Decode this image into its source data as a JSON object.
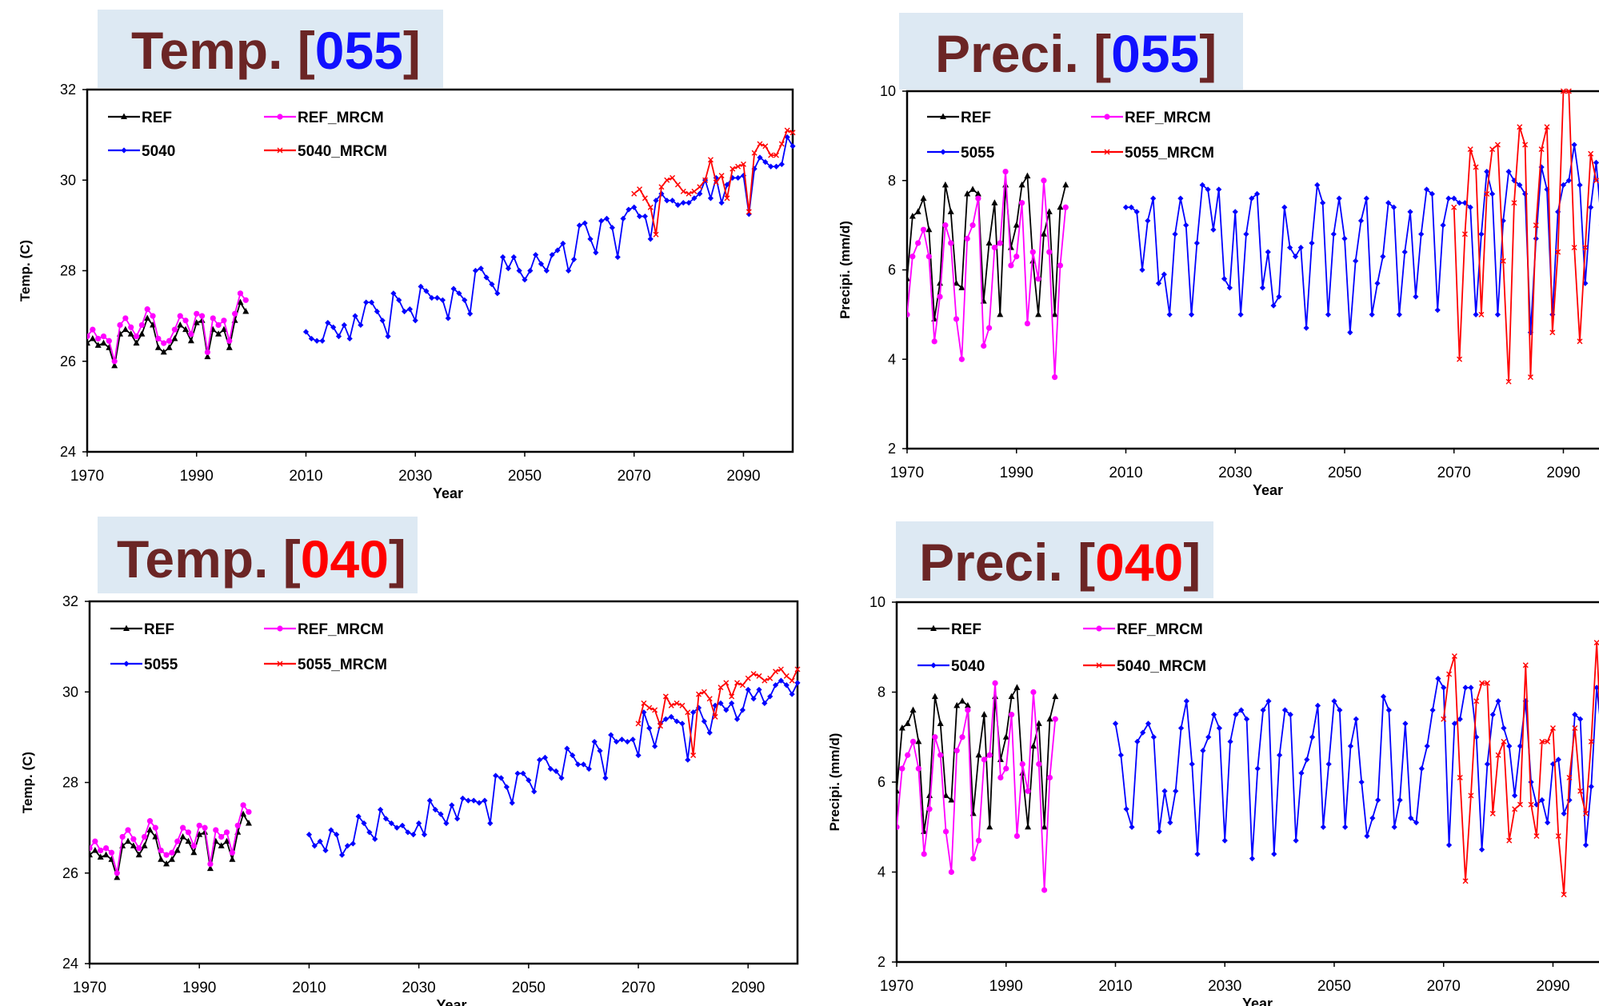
{
  "chart_data": [
    {
      "type": "line",
      "title_prefix": "Temp. [",
      "title_code": "055",
      "title_suffix": "]",
      "title_code_color": "#1010ff",
      "xlabel": "Year",
      "ylabel": "Temp. (C)",
      "xlim": [
        1970,
        2099
      ],
      "ylim": [
        24,
        32
      ],
      "xticks": [
        1970,
        1990,
        2010,
        2030,
        2050,
        2070,
        2090
      ],
      "yticks": [
        24,
        26,
        28,
        30,
        32
      ],
      "grid": false,
      "legend": "top-left",
      "series": [
        {
          "name": "REF",
          "color": "#000000",
          "marker": "triangle",
          "x0": 1970,
          "values": [
            26.4,
            26.5,
            26.35,
            26.4,
            26.3,
            25.9,
            26.6,
            26.7,
            26.6,
            26.4,
            26.6,
            26.95,
            26.8,
            26.3,
            26.2,
            26.3,
            26.5,
            26.8,
            26.7,
            26.45,
            26.85,
            26.9,
            26.1,
            26.7,
            26.6,
            26.7,
            26.3,
            26.9,
            27.3,
            27.1
          ]
        },
        {
          "name": "REF_MRCM",
          "color": "#ff00ff",
          "marker": "circle",
          "x0": 1970,
          "values": [
            26.55,
            26.7,
            26.5,
            26.55,
            26.45,
            26.0,
            26.8,
            26.95,
            26.75,
            26.55,
            26.8,
            27.15,
            27.0,
            26.5,
            26.4,
            26.45,
            26.7,
            27.0,
            26.9,
            26.6,
            27.05,
            27.0,
            26.2,
            26.95,
            26.8,
            26.9,
            26.45,
            27.05,
            27.5,
            27.35
          ]
        },
        {
          "name": "5040",
          "color": "#0000ff",
          "marker": "diamond",
          "x0": 2010,
          "values": [
            26.65,
            26.5,
            26.45,
            26.45,
            26.85,
            26.75,
            26.55,
            26.8,
            26.5,
            27.0,
            26.8,
            27.3,
            27.3,
            27.1,
            26.9,
            26.55,
            27.5,
            27.35,
            27.1,
            27.15,
            26.9,
            27.65,
            27.55,
            27.4,
            27.4,
            27.35,
            26.95,
            27.6,
            27.5,
            27.35,
            27.05,
            28.0,
            28.05,
            27.85,
            27.7,
            27.5,
            28.3,
            28.05,
            28.3,
            28.0,
            27.8,
            28.0,
            28.35,
            28.15,
            28.0,
            28.35,
            28.45,
            28.6,
            28.0,
            28.25,
            29.0,
            29.05,
            28.7,
            28.4,
            29.1,
            29.15,
            28.95,
            28.3,
            29.15,
            29.35,
            29.4,
            29.2,
            29.2,
            28.7,
            29.55,
            29.7,
            29.55,
            29.55,
            29.45,
            29.5,
            29.5,
            29.6,
            29.7,
            30.0,
            29.6,
            30.05,
            29.5,
            29.9,
            30.05,
            30.05,
            30.1,
            29.25,
            30.25,
            30.5,
            30.4,
            30.3,
            30.3,
            30.35,
            30.95,
            30.75
          ]
        },
        {
          "name": "5040_MRCM",
          "color": "#ff0000",
          "marker": "x",
          "x0": 2070,
          "values": [
            29.7,
            29.8,
            29.6,
            29.4,
            28.8,
            29.85,
            30.0,
            30.05,
            29.9,
            29.75,
            29.7,
            29.75,
            29.85,
            30.0,
            30.45,
            29.95,
            30.1,
            29.6,
            30.25,
            30.3,
            30.35,
            29.3,
            30.6,
            30.8,
            30.75,
            30.55,
            30.55,
            30.8,
            31.1,
            31.05
          ]
        }
      ]
    },
    {
      "type": "line",
      "title_prefix": "Preci. [",
      "title_code": "055",
      "title_suffix": "]",
      "title_code_color": "#1010ff",
      "xlabel": "Year",
      "ylabel": "Precipi. (mm/d)",
      "xlim": [
        1970,
        2099
      ],
      "ylim": [
        2,
        10
      ],
      "xticks": [
        1970,
        1990,
        2010,
        2030,
        2050,
        2070,
        2090
      ],
      "yticks": [
        2,
        4,
        6,
        8,
        10
      ],
      "grid": false,
      "legend": "top-left",
      "series": [
        {
          "name": "REF",
          "color": "#000000",
          "marker": "triangle",
          "x0": 1970,
          "values": [
            5.8,
            7.2,
            7.3,
            7.6,
            6.9,
            4.9,
            5.7,
            7.9,
            7.3,
            5.7,
            5.6,
            7.7,
            7.8,
            7.7,
            5.3,
            6.6,
            7.5,
            5.0,
            7.9,
            6.5,
            7.0,
            7.9,
            8.1,
            6.2,
            5.0,
            6.8,
            7.3,
            5.0,
            7.4,
            7.9
          ]
        },
        {
          "name": "REF_MRCM",
          "color": "#ff00ff",
          "marker": "circle",
          "x0": 1970,
          "values": [
            5.0,
            6.3,
            6.6,
            6.9,
            6.3,
            4.4,
            5.4,
            7.0,
            6.6,
            4.9,
            4.0,
            6.7,
            7.0,
            7.6,
            4.3,
            4.7,
            6.5,
            6.6,
            8.2,
            6.1,
            6.3,
            7.5,
            4.8,
            6.4,
            5.8,
            8.0,
            6.4,
            3.6,
            6.1,
            7.4
          ]
        },
        {
          "name": "5055",
          "color": "#0000ff",
          "marker": "diamond",
          "x0": 2010,
          "values": [
            7.4,
            7.4,
            7.3,
            6.0,
            7.1,
            7.6,
            5.7,
            5.9,
            5.0,
            6.8,
            7.6,
            7.0,
            5.0,
            6.6,
            7.9,
            7.8,
            6.9,
            7.8,
            5.8,
            5.6,
            7.3,
            5.0,
            6.8,
            7.6,
            7.7,
            5.6,
            6.4,
            5.2,
            5.4,
            7.4,
            6.5,
            6.3,
            6.5,
            4.7,
            6.6,
            7.9,
            7.5,
            5.0,
            6.8,
            7.6,
            6.7,
            4.6,
            6.2,
            7.1,
            7.6,
            5.0,
            5.7,
            6.3,
            7.5,
            7.4,
            5.0,
            6.4,
            7.3,
            5.4,
            6.8,
            7.8,
            7.7,
            5.1,
            7.0,
            7.6,
            7.6,
            7.5,
            7.5,
            7.4,
            5.0,
            6.8,
            8.2,
            7.7,
            5.0,
            7.1,
            8.2,
            8.0,
            7.9,
            7.7,
            4.6,
            6.7,
            8.3,
            7.8,
            5.0,
            7.3,
            7.9,
            8.0,
            8.8,
            7.9,
            5.7,
            7.4,
            8.4,
            7.0,
            5.5,
            6.3,
            8.3
          ]
        },
        {
          "name": "5055_MRCM",
          "color": "#ff0000",
          "marker": "x",
          "x0": 2070,
          "values": [
            7.4,
            4.0,
            6.8,
            8.7,
            8.3,
            5.0,
            7.7,
            8.7,
            8.8,
            6.2,
            3.5,
            7.5,
            9.2,
            8.8,
            3.6,
            7.0,
            8.7,
            9.2,
            4.6,
            6.4,
            10.0,
            10.0,
            6.5,
            4.4,
            6.5,
            8.6,
            8.0
          ]
        }
      ]
    },
    {
      "type": "line",
      "title_prefix": "Temp. [",
      "title_code": "040",
      "title_suffix": "]",
      "title_code_color": "#ff0000",
      "xlabel": "Year",
      "ylabel": "Temp. (C)",
      "xlim": [
        1970,
        2099
      ],
      "ylim": [
        24,
        32
      ],
      "xticks": [
        1970,
        1990,
        2010,
        2030,
        2050,
        2070,
        2090
      ],
      "yticks": [
        24,
        26,
        28,
        30,
        32
      ],
      "grid": false,
      "legend": "top-left",
      "series": [
        {
          "name": "REF",
          "color": "#000000",
          "marker": "triangle",
          "x0": 1970,
          "values": [
            26.4,
            26.5,
            26.35,
            26.4,
            26.3,
            25.9,
            26.6,
            26.7,
            26.6,
            26.4,
            26.6,
            26.95,
            26.8,
            26.3,
            26.2,
            26.3,
            26.5,
            26.8,
            26.7,
            26.45,
            26.85,
            26.9,
            26.1,
            26.7,
            26.6,
            26.7,
            26.3,
            26.9,
            27.3,
            27.1
          ]
        },
        {
          "name": "REF_MRCM",
          "color": "#ff00ff",
          "marker": "circle",
          "x0": 1970,
          "values": [
            26.55,
            26.7,
            26.5,
            26.55,
            26.45,
            26.0,
            26.8,
            26.95,
            26.75,
            26.55,
            26.8,
            27.15,
            27.0,
            26.5,
            26.4,
            26.45,
            26.7,
            27.0,
            26.9,
            26.6,
            27.05,
            27.0,
            26.2,
            26.95,
            26.8,
            26.9,
            26.45,
            27.05,
            27.5,
            27.35
          ]
        },
        {
          "name": "5055",
          "color": "#0000ff",
          "marker": "diamond",
          "x0": 2010,
          "values": [
            26.85,
            26.6,
            26.7,
            26.5,
            26.95,
            26.85,
            26.4,
            26.6,
            26.65,
            27.25,
            27.1,
            26.9,
            26.75,
            27.4,
            27.2,
            27.1,
            27.0,
            27.05,
            26.9,
            26.85,
            27.1,
            26.85,
            27.6,
            27.4,
            27.3,
            27.1,
            27.5,
            27.2,
            27.65,
            27.6,
            27.6,
            27.55,
            27.6,
            27.1,
            28.15,
            28.1,
            27.9,
            27.55,
            28.2,
            28.2,
            28.05,
            27.8,
            28.5,
            28.55,
            28.3,
            28.25,
            28.1,
            28.75,
            28.6,
            28.4,
            28.4,
            28.3,
            28.9,
            28.7,
            28.1,
            29.05,
            28.9,
            28.95,
            28.9,
            28.95,
            28.6,
            29.55,
            29.2,
            28.8,
            29.3,
            29.4,
            29.45,
            29.35,
            29.3,
            28.5,
            29.55,
            29.65,
            29.35,
            29.1,
            29.7,
            29.75,
            29.6,
            29.75,
            29.4,
            29.6,
            30.05,
            29.85,
            30.05,
            29.75,
            29.9,
            30.15,
            30.25,
            30.15,
            29.95,
            30.2
          ]
        },
        {
          "name": "5055_MRCM",
          "color": "#ff0000",
          "marker": "x",
          "x0": 2070,
          "values": [
            29.3,
            29.75,
            29.65,
            29.6,
            29.25,
            29.9,
            29.7,
            29.75,
            29.7,
            29.55,
            28.6,
            29.95,
            30.0,
            29.85,
            29.45,
            30.1,
            30.2,
            29.9,
            30.2,
            30.15,
            30.3,
            30.4,
            30.35,
            30.25,
            30.3,
            30.45,
            30.5,
            30.35,
            30.25,
            30.5
          ]
        }
      ]
    },
    {
      "type": "line",
      "title_prefix": "Preci. [",
      "title_code": "040",
      "title_suffix": "]",
      "title_code_color": "#ff0000",
      "xlabel": "Year",
      "ylabel": "Precipi. (mm/d)",
      "xlim": [
        1970,
        2099
      ],
      "ylim": [
        2,
        10
      ],
      "xticks": [
        1970,
        1990,
        2010,
        2030,
        2050,
        2070,
        2090
      ],
      "yticks": [
        2,
        4,
        6,
        8,
        10
      ],
      "grid": false,
      "legend": "top-left",
      "series": [
        {
          "name": "REF",
          "color": "#000000",
          "marker": "triangle",
          "x0": 1970,
          "values": [
            5.8,
            7.2,
            7.3,
            7.6,
            6.9,
            4.9,
            5.7,
            7.9,
            7.3,
            5.7,
            5.6,
            7.7,
            7.8,
            7.7,
            5.3,
            6.6,
            7.5,
            5.0,
            7.9,
            6.5,
            7.0,
            7.9,
            8.1,
            6.2,
            5.0,
            6.8,
            7.3,
            5.0,
            7.4,
            7.9
          ]
        },
        {
          "name": "REF_MRCM",
          "color": "#ff00ff",
          "marker": "circle",
          "x0": 1970,
          "values": [
            5.0,
            6.3,
            6.6,
            6.9,
            6.3,
            4.4,
            5.4,
            7.0,
            6.6,
            4.9,
            4.0,
            6.7,
            7.0,
            7.6,
            4.3,
            4.7,
            6.5,
            6.6,
            8.2,
            6.1,
            6.3,
            7.5,
            4.8,
            6.4,
            5.8,
            8.0,
            6.4,
            3.6,
            6.1,
            7.4
          ]
        },
        {
          "name": "5040",
          "color": "#0000ff",
          "marker": "diamond",
          "x0": 2010,
          "values": [
            7.3,
            6.6,
            5.4,
            5.0,
            6.9,
            7.1,
            7.3,
            7.0,
            4.9,
            5.8,
            5.1,
            5.8,
            7.2,
            7.8,
            6.4,
            4.4,
            6.7,
            7.0,
            7.5,
            7.2,
            4.7,
            6.9,
            7.5,
            7.6,
            7.4,
            4.3,
            6.3,
            7.6,
            7.8,
            4.4,
            6.6,
            7.6,
            7.5,
            4.7,
            6.2,
            6.5,
            7.0,
            7.7,
            5.0,
            6.4,
            7.8,
            7.6,
            5.0,
            6.8,
            7.4,
            6.0,
            4.8,
            5.2,
            5.6,
            7.9,
            7.6,
            5.0,
            5.6,
            7.3,
            5.2,
            5.1,
            6.3,
            6.8,
            7.6,
            8.3,
            8.1,
            4.6,
            7.3,
            7.4,
            8.1,
            8.1,
            7.0,
            4.5,
            6.4,
            7.5,
            7.8,
            7.2,
            6.8,
            5.7,
            6.8,
            7.8,
            6.0,
            5.5,
            5.6,
            5.1,
            6.4,
            6.5,
            5.3,
            5.6,
            7.5,
            7.4,
            4.6,
            5.9,
            8.1,
            7.0
          ]
        },
        {
          "name": "5040_MRCM",
          "color": "#ff0000",
          "marker": "x",
          "x0": 2070,
          "values": [
            7.4,
            8.4,
            8.8,
            6.1,
            3.8,
            5.7,
            7.8,
            8.2,
            8.2,
            5.3,
            6.6,
            6.9,
            4.7,
            5.4,
            5.5,
            8.6,
            5.5,
            4.8,
            6.9,
            6.9,
            7.2,
            4.8,
            3.5,
            6.1,
            7.2,
            5.8,
            5.3,
            6.9,
            9.1,
            6.4
          ]
        }
      ]
    }
  ]
}
